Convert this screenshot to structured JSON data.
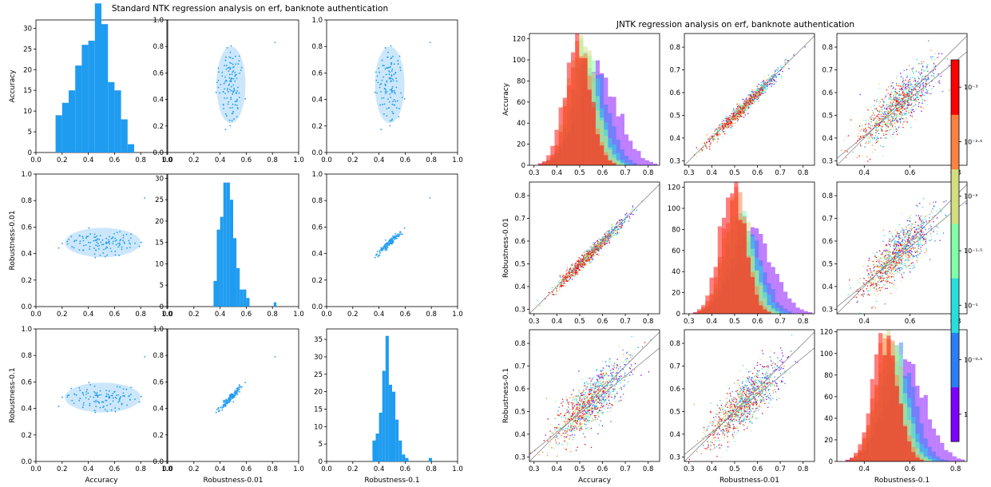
{
  "titles": {
    "left": "Standard NTK regression analysis on erf, banknote authentication",
    "right": "JNTK regression analysis on erf, banknote authentication"
  },
  "labels": {
    "vars": [
      "Accuracy",
      "Robustness-0.01",
      "Robustness-0.1"
    ]
  },
  "colors": {
    "blue": "#1f9cf0",
    "ellipse": "#cce7fb",
    "diag": "#888888",
    "colormap": [
      "#8000ff",
      "#2c7ef7",
      "#2adddd",
      "#82ffa9",
      "#d4dd80",
      "#ff8040",
      "#ff0000"
    ]
  },
  "colorbar": {
    "ticks": [
      "10⁻³",
      "10⁻²·⁵",
      "10⁻²",
      "10⁻¹·⁵",
      "10⁻¹",
      "10⁻⁰·⁵",
      "1"
    ]
  },
  "chart_data": [
    {
      "type": "scatter-matrix",
      "title": "Standard NTK regression analysis on erf, banknote authentication",
      "variables": [
        "Accuracy",
        "Robustness-0.01",
        "Robustness-0.1"
      ],
      "diag_hist": [
        {
          "variable": "Accuracy",
          "bins": [
            0.15,
            0.2,
            0.25,
            0.3,
            0.35,
            0.4,
            0.45,
            0.5,
            0.55,
            0.6,
            0.65,
            0.7,
            0.75,
            0.8,
            0.85
          ],
          "counts": [
            9,
            12,
            15,
            21,
            26,
            27,
            36,
            31,
            17,
            15,
            8,
            2,
            0,
            0
          ],
          "ylim": [
            0,
            32
          ],
          "xlim": [
            0,
            1
          ]
        },
        {
          "variable": "Robustness-0.01",
          "bins": [
            0.35,
            0.375,
            0.4,
            0.425,
            0.45,
            0.475,
            0.5,
            0.525,
            0.55,
            0.575,
            0.6,
            0.625,
            0.65
          ],
          "counts": [
            6,
            18,
            21,
            29,
            29,
            25,
            16,
            9,
            4,
            4,
            2,
            0
          ],
          "ylim": [
            0,
            31
          ],
          "xlim": [
            0,
            1
          ]
        },
        {
          "variable": "Robustness-0.1",
          "bins": [
            0.35,
            0.375,
            0.4,
            0.425,
            0.45,
            0.475,
            0.5,
            0.525,
            0.55,
            0.575,
            0.6,
            0.625,
            0.65
          ],
          "counts": [
            6,
            8,
            14,
            26,
            36,
            22,
            20,
            12,
            6,
            2,
            1,
            0
          ],
          "ylim": [
            0,
            38
          ],
          "xlim": [
            0,
            1
          ]
        }
      ],
      "axis_ranges": {
        "offdiag_xlim": [
          0,
          1
        ],
        "offdiag_ylim": [
          0,
          1
        ]
      }
    },
    {
      "type": "scatter-matrix",
      "title": "JNTK regression analysis on erf, banknote authentication",
      "variables": [
        "Accuracy",
        "Robustness-0.01",
        "Robustness-0.1"
      ],
      "axis_ranges": {
        "xlim": [
          0.28,
          0.85
        ],
        "ylim": [
          0.28,
          0.86
        ]
      },
      "hist_ylim": [
        [
          0,
          125
        ],
        [
          0,
          125
        ],
        [
          0,
          122
        ]
      ],
      "colorbar_ticks": [
        "10⁻³",
        "10⁻²·⁵",
        "10⁻²",
        "10⁻¹·⁵",
        "10⁻¹",
        "10⁻⁰·⁵",
        "1"
      ]
    }
  ]
}
